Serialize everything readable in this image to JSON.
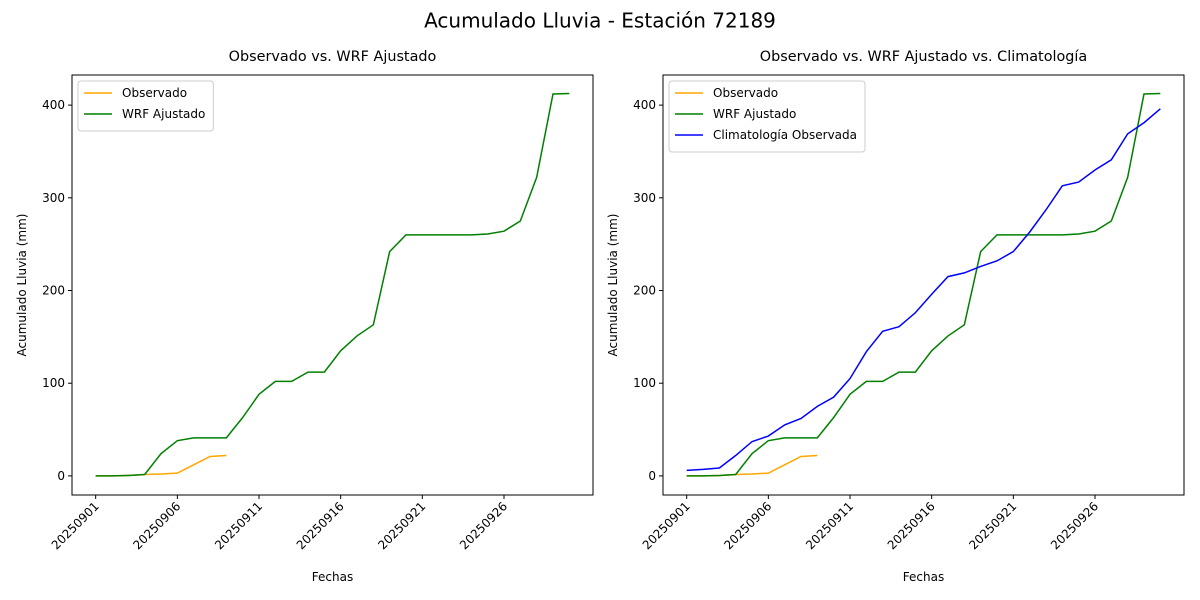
{
  "title": "Acumulado Lluvia - Estación 72189",
  "chart_data": [
    {
      "type": "line",
      "title": "Observado vs. WRF Ajustado",
      "x_label": "Fechas",
      "y_label": "Acumulado Lluvia (mm)",
      "legend": "upper left",
      "x": [
        "20250901",
        "20250902",
        "20250903",
        "20250904",
        "20250905",
        "20250906",
        "20250907",
        "20250908",
        "20250909",
        "20250910",
        "20250911",
        "20250912",
        "20250913",
        "20250914",
        "20250915",
        "20250916",
        "20250917",
        "20250918",
        "20250919",
        "20250920",
        "20250921",
        "20250922",
        "20250923",
        "20250924",
        "20250925",
        "20250926",
        "20250927",
        "20250928",
        "20250929",
        "20250930"
      ],
      "xticks": [
        "20250901",
        "20250906",
        "20250911",
        "20250916",
        "20250921",
        "20250926"
      ],
      "ylim": [
        -20.6,
        432.5
      ],
      "yticks": [
        0,
        100,
        200,
        300,
        400
      ],
      "series": [
        {
          "name": "Observado",
          "color": "orange",
          "values": [
            0,
            0,
            0.5,
            1.5,
            2,
            3,
            12,
            21,
            22,
            null,
            null,
            null,
            null,
            null,
            null,
            null,
            null,
            null,
            null,
            null,
            null,
            null,
            null,
            null,
            null,
            null,
            null,
            null,
            null,
            null
          ]
        },
        {
          "name": "WRF Ajustado",
          "color": "green",
          "values": [
            0,
            0,
            0.5,
            1.5,
            24,
            38,
            41,
            41,
            41,
            63,
            88,
            102,
            102,
            112,
            112,
            135,
            151,
            163,
            242,
            260,
            260,
            260,
            260,
            260,
            261,
            264,
            275,
            322,
            412,
            412.5
          ]
        }
      ]
    },
    {
      "type": "line",
      "title": "Observado vs. WRF Ajustado vs. Climatología",
      "x_label": "Fechas",
      "y_label": "Acumulado Lluvia (mm)",
      "legend": "upper left",
      "x": [
        "20250901",
        "20250902",
        "20250903",
        "20250904",
        "20250905",
        "20250906",
        "20250907",
        "20250908",
        "20250909",
        "20250910",
        "20250911",
        "20250912",
        "20250913",
        "20250914",
        "20250915",
        "20250916",
        "20250917",
        "20250918",
        "20250919",
        "20250920",
        "20250921",
        "20250922",
        "20250923",
        "20250924",
        "20250925",
        "20250926",
        "20250927",
        "20250928",
        "20250929",
        "20250930"
      ],
      "xticks": [
        "20250901",
        "20250906",
        "20250911",
        "20250916",
        "20250921",
        "20250926"
      ],
      "ylim": [
        -20.6,
        432.5
      ],
      "yticks": [
        0,
        100,
        200,
        300,
        400
      ],
      "series": [
        {
          "name": "Observado",
          "color": "orange",
          "values": [
            0,
            0,
            0.5,
            1.5,
            2,
            3,
            12,
            21,
            22,
            null,
            null,
            null,
            null,
            null,
            null,
            null,
            null,
            null,
            null,
            null,
            null,
            null,
            null,
            null,
            null,
            null,
            null,
            null,
            null,
            null
          ]
        },
        {
          "name": "WRF Ajustado",
          "color": "green",
          "values": [
            0,
            0,
            0.5,
            1.5,
            24,
            38,
            41,
            41,
            41,
            63,
            88,
            102,
            102,
            112,
            112,
            135,
            151,
            163,
            242,
            260,
            260,
            260,
            260,
            260,
            261,
            264,
            275,
            322,
            412,
            412.5
          ]
        },
        {
          "name": "Climatología Observada",
          "color": "blue",
          "values": [
            6,
            7,
            8.5,
            22,
            37,
            43,
            55,
            62,
            75,
            85,
            105,
            134,
            156,
            161,
            176,
            196,
            215,
            219,
            226,
            232,
            242,
            263,
            287,
            313,
            317,
            330,
            341,
            369,
            381,
            396
          ]
        }
      ]
    }
  ]
}
